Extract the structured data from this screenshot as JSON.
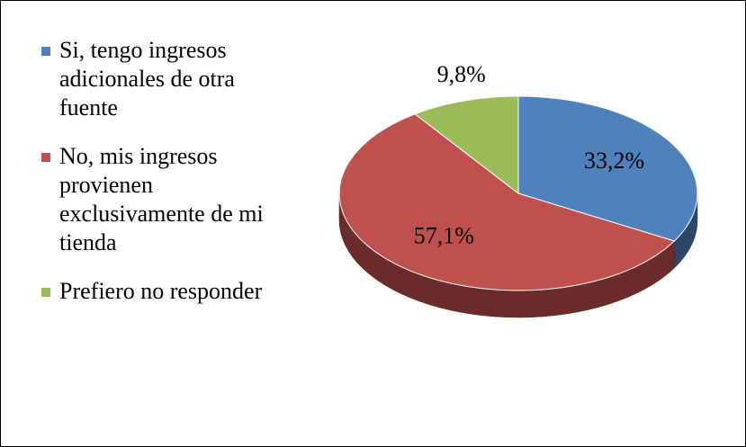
{
  "chart_data": {
    "type": "pie",
    "categories": [
      "Si, tengo ingresos adicionales de otra fuente",
      "No, mis ingresos provienen exclusivamente de mi tienda",
      "Prefiero no responder"
    ],
    "values": [
      33.2,
      57.1,
      9.8
    ],
    "value_labels": [
      "33,2%",
      "57,1%",
      "9,8%"
    ],
    "colors": [
      "#4f81bd",
      "#c0504d",
      "#9bbb59"
    ],
    "legend": "left"
  }
}
